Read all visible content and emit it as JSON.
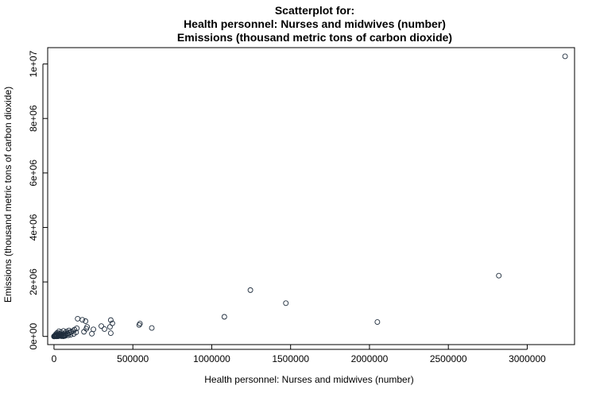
{
  "chart_data": {
    "type": "scatter",
    "title": [
      "Scatterplot for:",
      "Health personnel: Nurses and midwives (number)",
      "Emissions (thousand metric tons of carbon dioxide)"
    ],
    "xlabel": "Health personnel: Nurses and midwives (number)",
    "ylabel": "Emissions (thousand metric tons of carbon dioxide)",
    "xlim": [
      -40000,
      3300000
    ],
    "ylim": [
      -300000,
      10600000
    ],
    "xticks": [
      0,
      500000,
      1000000,
      1500000,
      2000000,
      2500000,
      3000000
    ],
    "xtick_labels": [
      "0",
      "500000",
      "1000000",
      "1500000",
      "2000000",
      "2500000",
      "3000000"
    ],
    "yticks": [
      0,
      2000000,
      4000000,
      6000000,
      8000000,
      10000000
    ],
    "ytick_labels": [
      "0e+00",
      "2e+06",
      "4e+06",
      "6e+06",
      "8e+06",
      "1e+07"
    ],
    "grid": false,
    "point_color": "#1f2d3d",
    "points": [
      [
        3240000,
        10280000
      ],
      [
        2820000,
        2230000
      ],
      [
        2050000,
        530000
      ],
      [
        1470000,
        1220000
      ],
      [
        1245000,
        1700000
      ],
      [
        1080000,
        720000
      ],
      [
        620000,
        310000
      ],
      [
        545000,
        470000
      ],
      [
        540000,
        420000
      ],
      [
        360000,
        600000
      ],
      [
        370000,
        480000
      ],
      [
        355000,
        350000
      ],
      [
        360000,
        120000
      ],
      [
        320000,
        270000
      ],
      [
        300000,
        380000
      ],
      [
        250000,
        260000
      ],
      [
        240000,
        100000
      ],
      [
        210000,
        350000
      ],
      [
        200000,
        560000
      ],
      [
        205000,
        280000
      ],
      [
        190000,
        170000
      ],
      [
        180000,
        610000
      ],
      [
        150000,
        650000
      ],
      [
        145000,
        300000
      ],
      [
        140000,
        150000
      ],
      [
        130000,
        250000
      ],
      [
        125000,
        90000
      ],
      [
        120000,
        200000
      ],
      [
        110000,
        180000
      ],
      [
        105000,
        60000
      ],
      [
        100000,
        140000
      ],
      [
        95000,
        220000
      ],
      [
        90000,
        40000
      ],
      [
        85000,
        120000
      ],
      [
        80000,
        180000
      ],
      [
        75000,
        60000
      ],
      [
        70000,
        20000
      ],
      [
        65000,
        110000
      ],
      [
        60000,
        200000
      ],
      [
        55000,
        70000
      ],
      [
        50000,
        30000
      ],
      [
        45000,
        150000
      ],
      [
        42000,
        90000
      ],
      [
        38000,
        20000
      ],
      [
        35000,
        60000
      ],
      [
        32000,
        190000
      ],
      [
        30000,
        110000
      ],
      [
        28000,
        40000
      ],
      [
        25000,
        10000
      ],
      [
        22000,
        70000
      ],
      [
        20000,
        130000
      ],
      [
        18000,
        30000
      ],
      [
        16000,
        50000
      ],
      [
        14000,
        15000
      ],
      [
        12000,
        80000
      ],
      [
        11000,
        25000
      ],
      [
        10000,
        5000
      ],
      [
        9000,
        45000
      ],
      [
        8000,
        12000
      ],
      [
        7000,
        30000
      ],
      [
        6000,
        8000
      ],
      [
        5000,
        20000
      ],
      [
        4000,
        3000
      ],
      [
        3500,
        15000
      ],
      [
        3000,
        6000
      ],
      [
        2500,
        10000
      ],
      [
        2000,
        2000
      ],
      [
        1500,
        5000
      ],
      [
        1000,
        1000
      ],
      [
        800,
        3000
      ],
      [
        500,
        500
      ],
      [
        300,
        1500
      ],
      [
        60000,
        5000
      ],
      [
        48000,
        8000
      ],
      [
        26000,
        4000
      ],
      [
        15000,
        2000
      ],
      [
        13000,
        40000
      ],
      [
        9500,
        18000
      ],
      [
        6500,
        26000
      ],
      [
        4500,
        9000
      ],
      [
        88000,
        90000
      ],
      [
        68000,
        40000
      ],
      [
        57000,
        15000
      ],
      [
        43000,
        35000
      ]
    ]
  }
}
